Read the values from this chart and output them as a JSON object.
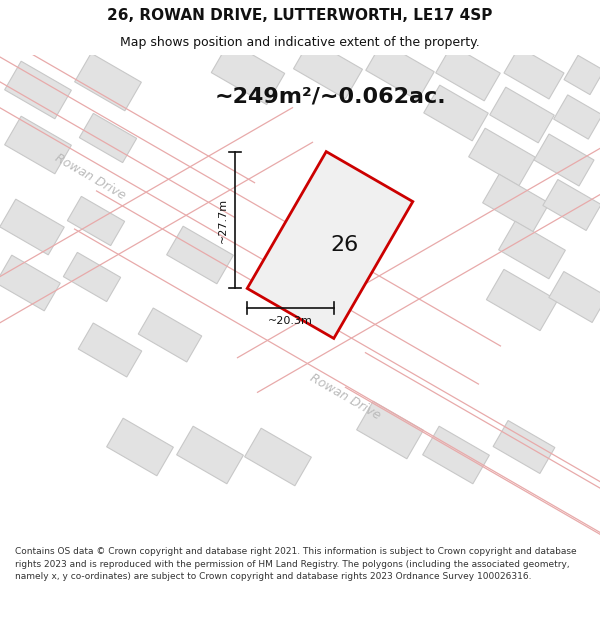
{
  "title": "26, ROWAN DRIVE, LUTTERWORTH, LE17 4SP",
  "subtitle": "Map shows position and indicative extent of the property.",
  "area_text": "~249m²/~0.062ac.",
  "number_label": "26",
  "dim_width": "~20.3m",
  "dim_height": "~27.7m",
  "road_label_upper": "Rowan Drive",
  "road_label_lower": "Rowan Drive",
  "footer": "Contains OS data © Crown copyright and database right 2021. This information is subject to Crown copyright and database rights 2023 and is reproduced with the permission of HM Land Registry. The polygons (including the associated geometry, namely x, y co-ordinates) are subject to Crown copyright and database rights 2023 Ordnance Survey 100026316.",
  "bg_color": "#ffffff",
  "map_bg": "#f5f5f5",
  "bld_fill": "#e2e2e2",
  "bld_edge": "#c8c8c8",
  "prop_fill": "#f0f0f0",
  "prop_edge": "#cc0000",
  "road_line_color": "#e8aaaa",
  "dim_color": "#111111",
  "text_color": "#111111",
  "road_text_color": "#bbbbbb",
  "title_fontsize": 11,
  "subtitle_fontsize": 9,
  "area_fontsize": 16,
  "label_fontsize": 16,
  "dim_fontsize": 8,
  "road_fontsize": 9,
  "footer_fontsize": 6.5
}
